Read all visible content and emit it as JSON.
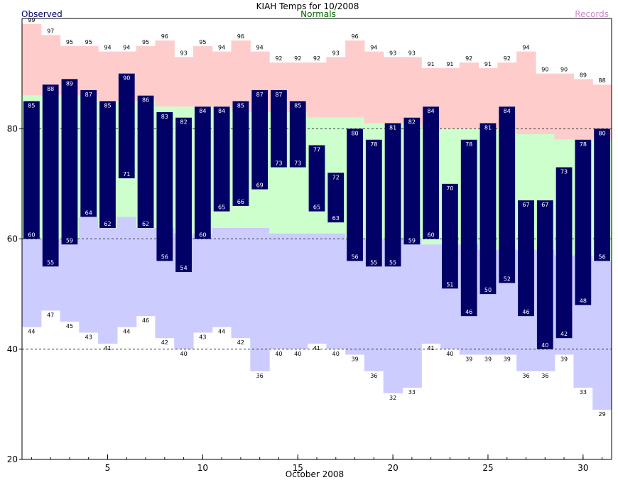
{
  "chart_data": {
    "type": "bar",
    "title": "KIAH Temps for 10/2008",
    "xlabel": "October 2008",
    "ylabel": "",
    "ylim": [
      20,
      100
    ],
    "grid_lines_y": [
      40,
      60,
      80
    ],
    "x_ticks": [
      5,
      10,
      15,
      20,
      25,
      30
    ],
    "y_ticks": [
      20,
      40,
      60,
      80
    ],
    "legend": [
      {
        "name": "Observed",
        "color": "#000066"
      },
      {
        "name": "Normals",
        "color": "#006600"
      },
      {
        "name": "Records",
        "color": "#cc88cc"
      }
    ],
    "days": [
      1,
      2,
      3,
      4,
      5,
      6,
      7,
      8,
      9,
      10,
      11,
      12,
      13,
      14,
      15,
      16,
      17,
      18,
      19,
      20,
      21,
      22,
      23,
      24,
      25,
      26,
      27,
      28,
      29,
      30,
      31
    ],
    "series": [
      {
        "name": "Observed",
        "high": [
          85,
          88,
          89,
          87,
          85,
          90,
          86,
          83,
          82,
          84,
          84,
          85,
          87,
          87,
          85,
          77,
          72,
          80,
          78,
          81,
          82,
          84,
          70,
          78,
          81,
          84,
          67,
          67,
          73,
          78,
          80
        ],
        "low": [
          60,
          55,
          59,
          64,
          62,
          71,
          62,
          56,
          54,
          60,
          65,
          66,
          69,
          73,
          73,
          65,
          63,
          56,
          55,
          55,
          59,
          60,
          51,
          46,
          50,
          52,
          46,
          40,
          42,
          48,
          56
        ]
      },
      {
        "name": "Normals",
        "high": [
          86,
          86,
          86,
          86,
          85,
          85,
          85,
          84,
          84,
          84,
          84,
          83,
          83,
          83,
          83,
          82,
          82,
          82,
          81,
          81,
          81,
          80,
          80,
          80,
          80,
          80,
          79,
          79,
          78,
          78,
          78
        ],
        "low": [
          60,
          60,
          60,
          64,
          62,
          64,
          62,
          62,
          61,
          61,
          62,
          62,
          62,
          61,
          61,
          61,
          61,
          60,
          60,
          60,
          60,
          59,
          59,
          59,
          58,
          58,
          58,
          58,
          57,
          57,
          56
        ]
      },
      {
        "name": "Records",
        "high": [
          99,
          97,
          95,
          95,
          94,
          94,
          95,
          96,
          93,
          95,
          94,
          96,
          94,
          92,
          92,
          92,
          93,
          96,
          94,
          93,
          93,
          91,
          91,
          92,
          91,
          92,
          94,
          90,
          90,
          89,
          88
        ],
        "low": [
          44,
          47,
          45,
          43,
          41,
          44,
          46,
          42,
          40,
          43,
          44,
          42,
          36,
          40,
          40,
          41,
          40,
          39,
          36,
          32,
          33,
          41,
          40,
          39,
          39,
          39,
          36,
          36,
          39,
          33,
          29
        ]
      }
    ],
    "label_overrides": {
      "1": {
        "record_high_label": "99"
      }
    }
  },
  "colors": {
    "record_band": "#ffcccc",
    "normal_band": "#ccffcc",
    "low_band": "#ccccff",
    "observed_bar": "#000066",
    "grid": "#333333"
  }
}
